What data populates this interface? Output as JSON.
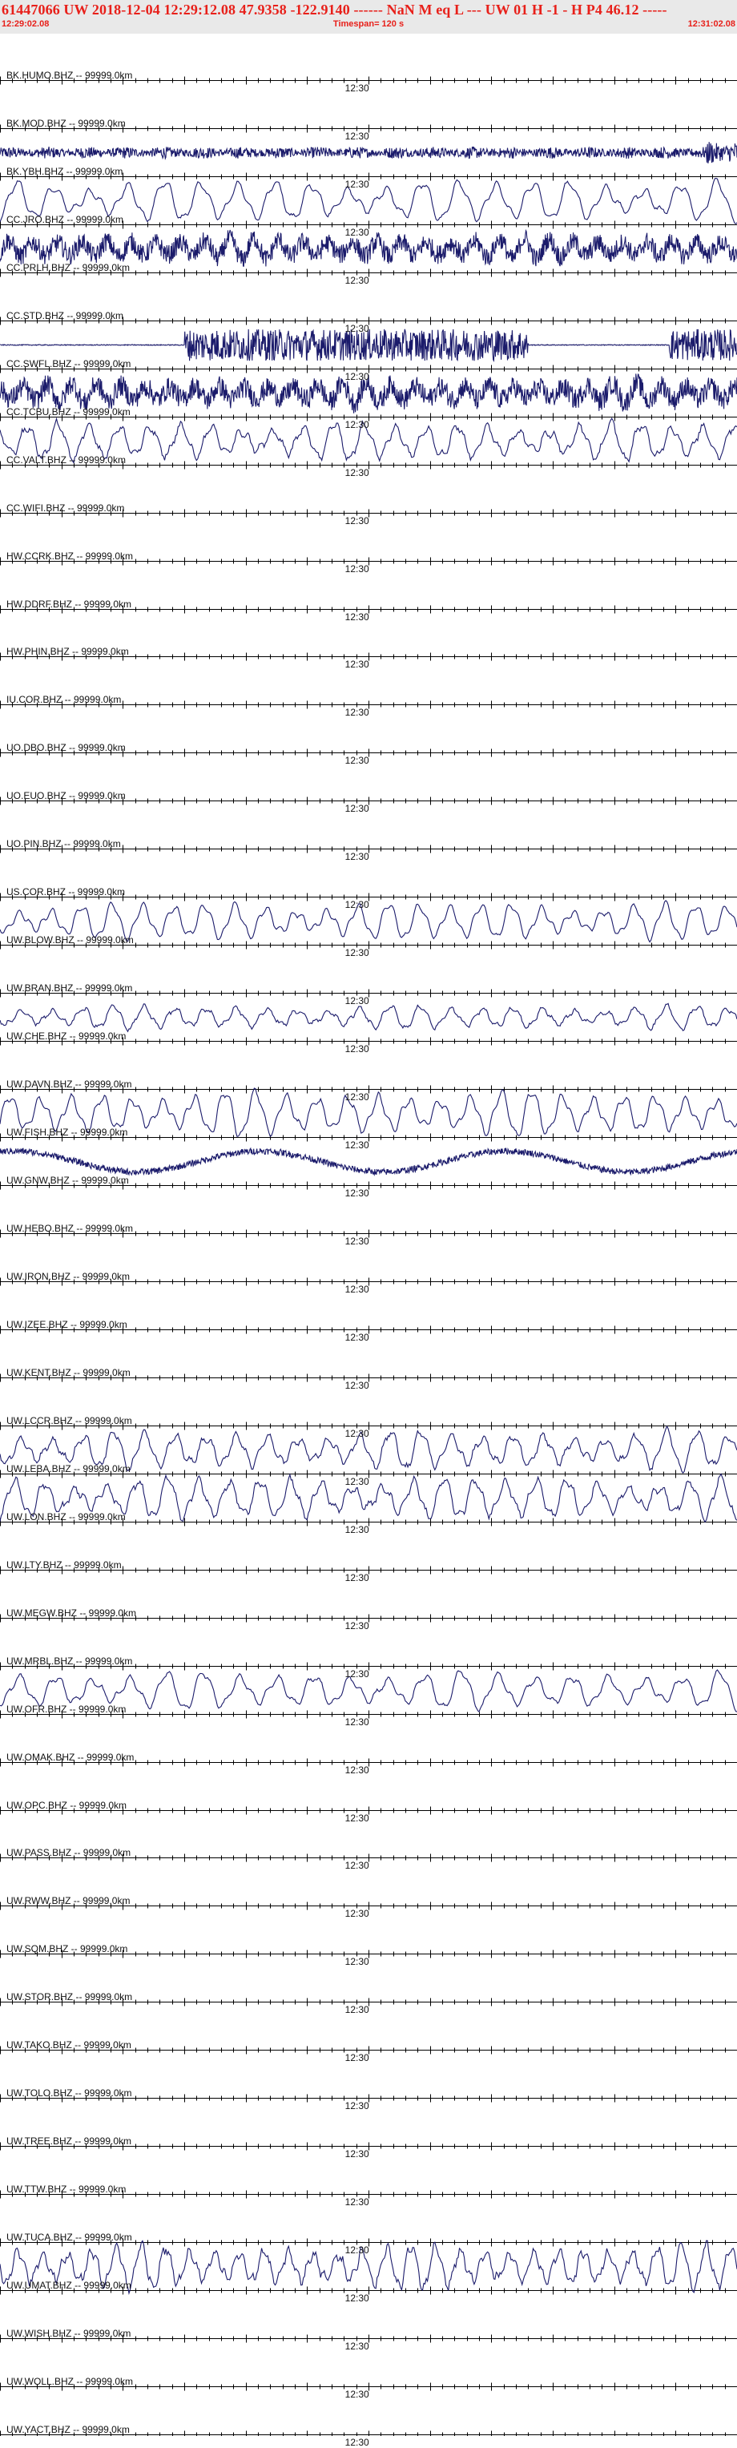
{
  "header": {
    "event_line": "61447066 UW 2018-12-04 12:29:12.08   47.9358 -122.9140 ------   NaN M   eq  L ---     UW 01  H  -1  -  H P4   46.12 -----",
    "start_time": "12:29:02.08",
    "timespan": "Timespan= 120 s",
    "end_time": "12:31:02.08"
  },
  "colors": {
    "header_text": "#e8201a",
    "header_bg": "#e9e9e9",
    "trace": "#1b1b6b",
    "axis": "#000000"
  },
  "chart_data": {
    "type": "line",
    "x_range_seconds": [
      0,
      120
    ],
    "time_tick_label": "12:30",
    "time_tick_label_seconds": 58,
    "station_suffix": " -- 99999.0km",
    "channels": [
      {
        "label": "BK.HUMO.BHZ",
        "amplitude": 0,
        "period": 0,
        "noise": 0,
        "style": "flat"
      },
      {
        "label": "BK.MOD.BHZ",
        "amplitude": 0,
        "period": 0,
        "noise": 0,
        "style": "flat"
      },
      {
        "label": "BK.YBH.BHZ",
        "amplitude": 0.28,
        "period": 2,
        "noise": 0.9,
        "style": "noise"
      },
      {
        "label": "CC.JRO.BHZ",
        "amplitude": 0.9,
        "period": 6,
        "noise": 0.05,
        "style": "wave"
      },
      {
        "label": "CC.PRLH.BHZ",
        "amplitude": 0.75,
        "period": 4,
        "noise": 0.6,
        "style": "noisywave"
      },
      {
        "label": "CC.STD.BHZ",
        "amplitude": 0,
        "period": 0,
        "noise": 0,
        "style": "flat"
      },
      {
        "label": "CC.SWFL.BHZ",
        "amplitude": 0.7,
        "period": 1.5,
        "noise": 0.95,
        "style": "burst"
      },
      {
        "label": "CC.TCBU.BHZ",
        "amplitude": 0.7,
        "period": 4,
        "noise": 0.7,
        "style": "noisywave"
      },
      {
        "label": "CC.VALT.BHZ",
        "amplitude": 0.8,
        "period": 5,
        "noise": 0.12,
        "style": "wave"
      },
      {
        "label": "CC.WIFI.BHZ",
        "amplitude": 0,
        "period": 0,
        "noise": 0,
        "style": "flat"
      },
      {
        "label": "HW.CCRK.BHZ",
        "amplitude": 0,
        "period": 0,
        "noise": 0,
        "style": "flat"
      },
      {
        "label": "HW.DDRF.BHZ",
        "amplitude": 0,
        "period": 0,
        "noise": 0,
        "style": "flat"
      },
      {
        "label": "HW.PHIN.BHZ",
        "amplitude": 0,
        "period": 0,
        "noise": 0,
        "style": "flat"
      },
      {
        "label": "IU.COR.BHZ",
        "amplitude": 0,
        "period": 0,
        "noise": 0,
        "style": "flat"
      },
      {
        "label": "UO.DBO.BHZ",
        "amplitude": 0,
        "period": 0,
        "noise": 0,
        "style": "flat"
      },
      {
        "label": "UO.EUO.BHZ",
        "amplitude": 0,
        "period": 0,
        "noise": 0,
        "style": "flat"
      },
      {
        "label": "UO.PIN.BHZ",
        "amplitude": 0,
        "period": 0,
        "noise": 0,
        "style": "flat"
      },
      {
        "label": "US.COR.BHZ",
        "amplitude": 0,
        "period": 0,
        "noise": 0,
        "style": "flat"
      },
      {
        "label": "UW.BLOW.BHZ",
        "amplitude": 0.8,
        "period": 5,
        "noise": 0.04,
        "style": "wave"
      },
      {
        "label": "UW.BRAN.BHZ",
        "amplitude": 0,
        "period": 0,
        "noise": 0,
        "style": "flat"
      },
      {
        "label": "UW.CHE.BHZ",
        "amplitude": 0.5,
        "period": 5,
        "noise": 0.12,
        "style": "wave"
      },
      {
        "label": "UW.DAVN.BHZ",
        "amplitude": 0,
        "period": 0,
        "noise": 0,
        "style": "flat"
      },
      {
        "label": "UW.FISH.BHZ",
        "amplitude": 0.95,
        "period": 5,
        "noise": 0.05,
        "style": "wave"
      },
      {
        "label": "UW.GNW.BHZ",
        "amplitude": 0.55,
        "period": 40,
        "noise": 0.35,
        "style": "drift"
      },
      {
        "label": "UW.HEBO.BHZ",
        "amplitude": 0,
        "period": 0,
        "noise": 0,
        "style": "flat"
      },
      {
        "label": "UW.IRON.BHZ",
        "amplitude": 0,
        "period": 0,
        "noise": 0,
        "style": "flat"
      },
      {
        "label": "UW.IZEE.BHZ",
        "amplitude": 0,
        "period": 0,
        "noise": 0,
        "style": "flat"
      },
      {
        "label": "UW.KENT.BHZ",
        "amplitude": 0,
        "period": 0,
        "noise": 0,
        "style": "flat"
      },
      {
        "label": "UW.LCCR.BHZ",
        "amplitude": 0,
        "period": 0,
        "noise": 0,
        "style": "flat"
      },
      {
        "label": "UW.LEBA.BHZ",
        "amplitude": 0.8,
        "period": 5,
        "noise": 0.1,
        "style": "wave"
      },
      {
        "label": "UW.LON.BHZ",
        "amplitude": 0.9,
        "period": 5,
        "noise": 0.1,
        "style": "wave"
      },
      {
        "label": "UW.LTY.BHZ",
        "amplitude": 0,
        "period": 0,
        "noise": 0,
        "style": "flat"
      },
      {
        "label": "UW.MEGW.BHZ",
        "amplitude": 0,
        "period": 0,
        "noise": 0,
        "style": "flat"
      },
      {
        "label": "UW.MRBL.BHZ",
        "amplitude": 0,
        "period": 0,
        "noise": 0,
        "style": "flat"
      },
      {
        "label": "UW.OFR.BHZ",
        "amplitude": 0.8,
        "period": 6,
        "noise": 0.06,
        "style": "wave"
      },
      {
        "label": "UW.OMAK.BHZ",
        "amplitude": 0,
        "period": 0,
        "noise": 0,
        "style": "flat"
      },
      {
        "label": "UW.OPC.BHZ",
        "amplitude": 0,
        "period": 0,
        "noise": 0,
        "style": "flat"
      },
      {
        "label": "UW.PASS.BHZ",
        "amplitude": 0,
        "period": 0,
        "noise": 0,
        "style": "flat"
      },
      {
        "label": "UW.RWW.BHZ",
        "amplitude": 0,
        "period": 0,
        "noise": 0,
        "style": "flat"
      },
      {
        "label": "UW.SQM.BHZ",
        "amplitude": 0,
        "period": 0,
        "noise": 0,
        "style": "flat"
      },
      {
        "label": "UW.STOR.BHZ",
        "amplitude": 0,
        "period": 0,
        "noise": 0,
        "style": "flat"
      },
      {
        "label": "UW.TAKO.BHZ",
        "amplitude": 0,
        "period": 0,
        "noise": 0,
        "style": "flat"
      },
      {
        "label": "UW.TOLO.BHZ",
        "amplitude": 0,
        "period": 0,
        "noise": 0,
        "style": "flat"
      },
      {
        "label": "UW.TREE.BHZ",
        "amplitude": 0,
        "period": 0,
        "noise": 0,
        "style": "flat"
      },
      {
        "label": "UW.TTW.BHZ",
        "amplitude": 0,
        "period": 0,
        "noise": 0,
        "style": "flat"
      },
      {
        "label": "UW.TUCA.BHZ",
        "amplitude": 0,
        "period": 0,
        "noise": 0,
        "style": "flat"
      },
      {
        "label": "UW.UMAT.BHZ",
        "amplitude": 0.9,
        "period": 4,
        "noise": 0.15,
        "style": "wave"
      },
      {
        "label": "UW.WISH.BHZ",
        "amplitude": 0,
        "period": 0,
        "noise": 0,
        "style": "flat"
      },
      {
        "label": "UW.WOLL.BHZ",
        "amplitude": 0,
        "period": 0,
        "noise": 0,
        "style": "flat"
      },
      {
        "label": "UW.YACT.BHZ",
        "amplitude": 0,
        "period": 0,
        "noise": 0,
        "style": "flat"
      }
    ]
  }
}
